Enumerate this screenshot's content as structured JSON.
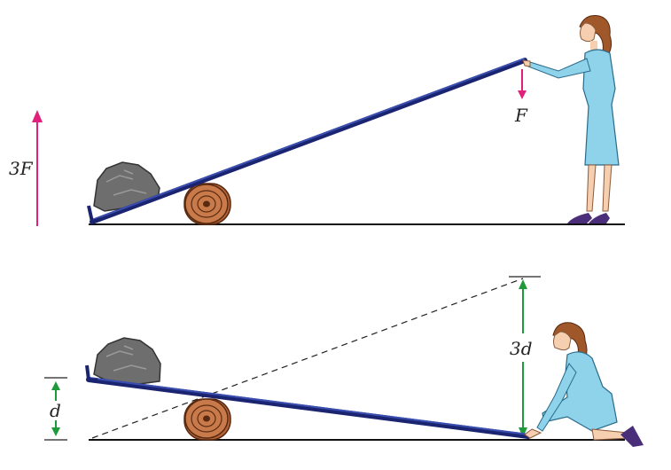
{
  "labels": {
    "force_applied": "F",
    "force_output": "3F",
    "distance_load": "d",
    "distance_effort": "3d"
  },
  "colors": {
    "lever": "#2b3a8f",
    "force_arrow": "#e0207a",
    "distance_arrow": "#1e9a3a",
    "dress": "#8fd3ea",
    "hair": "#a0582a",
    "rock": "#666666",
    "log": "#b5653a"
  }
}
